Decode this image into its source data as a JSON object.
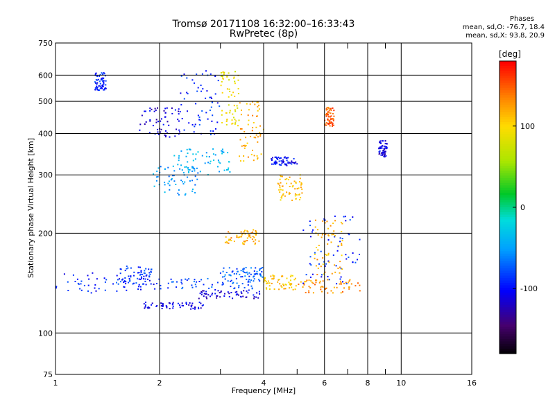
{
  "title_line1": "Tromsø 20171108 16:32:00–16:33:43",
  "title_line2": "RwPretec (8p)",
  "phases": {
    "label": "Phases",
    "line_o": "mean, sd,O:  -76.7, 18.4",
    "line_x": "mean, sd,X:  93.8, 20.9"
  },
  "colorbar": {
    "unit_label": "[deg]",
    "min": -180,
    "max": 180,
    "ticks": [
      100,
      0,
      -100
    ],
    "tick_labels": [
      "100",
      "0",
      "-100"
    ]
  },
  "chart_data": {
    "type": "scatter",
    "xlabel": "Frequency [MHz]",
    "ylabel": "Stationary phase Virtual Height [km]",
    "x_scale": "log",
    "y_scale": "log",
    "xlim": [
      1,
      16
    ],
    "ylim": [
      75,
      750
    ],
    "xticks": [
      1,
      2,
      4,
      6,
      8,
      10,
      16
    ],
    "xtick_labels": [
      "1",
      "2",
      "4",
      "6",
      "8",
      "10",
      "16"
    ],
    "yticks": [
      75,
      100,
      200,
      300,
      400,
      500,
      600,
      750
    ],
    "ytick_labels": [
      "75",
      "100",
      "200",
      "300",
      "400",
      "500",
      "600",
      "750"
    ],
    "grid": true,
    "series": [
      {
        "f_range": [
          1.0,
          2.0
        ],
        "h_range": [
          132,
          152
        ],
        "phase": -95
      },
      {
        "f_range": [
          1.5,
          1.9
        ],
        "h_range": [
          140,
          160
        ],
        "phase": -85
      },
      {
        "f_range": [
          1.8,
          2.7
        ],
        "h_range": [
          118,
          124
        ],
        "phase": -105
      },
      {
        "f_range": [
          2.0,
          3.9
        ],
        "h_range": [
          136,
          146
        ],
        "phase": -80
      },
      {
        "f_range": [
          2.6,
          4.0
        ],
        "h_range": [
          127,
          135
        ],
        "phase": -110
      },
      {
        "f_range": [
          3.0,
          4.0
        ],
        "h_range": [
          145,
          158
        ],
        "phase": -70
      },
      {
        "f_range": [
          4.0,
          5.0
        ],
        "h_range": [
          135,
          150
        ],
        "phase": 110
      },
      {
        "f_range": [
          5.0,
          7.6
        ],
        "h_range": [
          132,
          145
        ],
        "phase": 130
      },
      {
        "f_range": [
          5.2,
          7.6
        ],
        "h_range": [
          140,
          230
        ],
        "phase": -90
      },
      {
        "f_range": [
          5.6,
          6.8
        ],
        "h_range": [
          150,
          220
        ],
        "phase": 120
      },
      {
        "f_range": [
          3.1,
          3.9
        ],
        "h_range": [
          185,
          205
        ],
        "phase": 120
      },
      {
        "f_range": [
          3.4,
          4.0
        ],
        "h_range": [
          330,
          500
        ],
        "phase": 120
      },
      {
        "f_range": [
          3.0,
          3.4
        ],
        "h_range": [
          420,
          620
        ],
        "phase": 90
      },
      {
        "f_range": [
          2.2,
          3.2
        ],
        "h_range": [
          300,
          360
        ],
        "phase": -40
      },
      {
        "f_range": [
          1.9,
          2.6
        ],
        "h_range": [
          260,
          320
        ],
        "phase": -50
      },
      {
        "f_range": [
          1.75,
          2.3
        ],
        "h_range": [
          390,
          480
        ],
        "phase": -110
      },
      {
        "f_range": [
          2.3,
          3.0
        ],
        "h_range": [
          390,
          620
        ],
        "phase": -90
      },
      {
        "f_range": [
          4.2,
          5.0
        ],
        "h_range": [
          320,
          340
        ],
        "phase": -100
      },
      {
        "f_range": [
          4.4,
          5.2
        ],
        "h_range": [
          250,
          300
        ],
        "phase": 110
      },
      {
        "f_range": [
          8.6,
          9.1
        ],
        "h_range": [
          340,
          380
        ],
        "phase": -110
      },
      {
        "f_range": [
          6.0,
          6.4
        ],
        "h_range": [
          420,
          480
        ],
        "phase": 150
      },
      {
        "f_range": [
          1.3,
          1.4
        ],
        "h_range": [
          540,
          610
        ],
        "phase": -90
      }
    ]
  }
}
